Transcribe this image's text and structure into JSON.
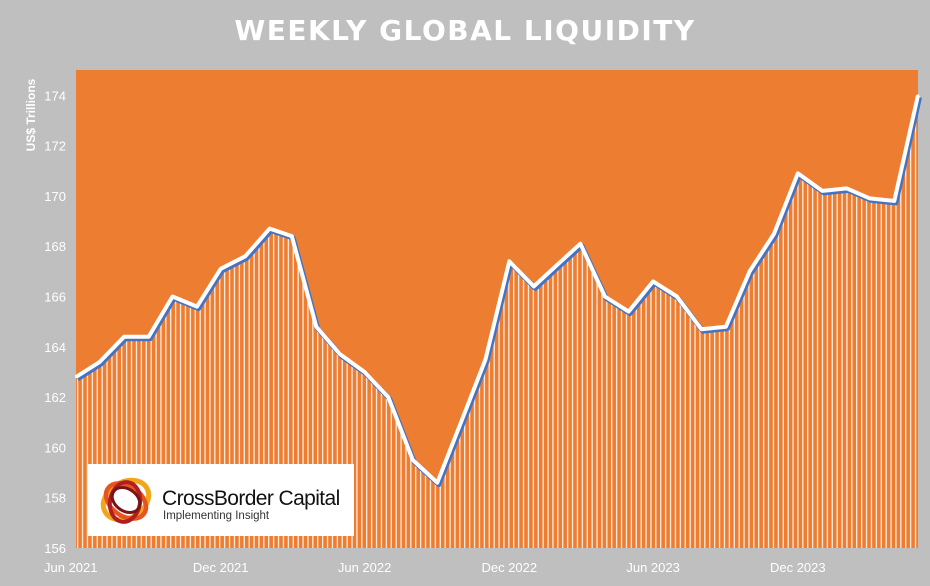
{
  "title": "WEEKLY GLOBAL LIQUIDITY",
  "logo": {
    "name": "CrossBorder Capital",
    "tagline": "Implementing Insight"
  },
  "colors": {
    "background": "#bfbfbf",
    "area": "#ed7d31",
    "line": "#ffffff",
    "line_shadow": "#4472c4"
  },
  "chart_data": {
    "type": "area",
    "title": "WEEKLY GLOBAL LIQUIDITY",
    "ylabel": "US$ Trillions",
    "xlabel": "",
    "ylim": [
      156,
      175
    ],
    "yticks": [
      156,
      158,
      160,
      162,
      164,
      166,
      168,
      170,
      172,
      174
    ],
    "xticks": [
      "Jun 2021",
      "Dec 2021",
      "Jun 2022",
      "Dec 2022",
      "Jun 2023",
      "Dec 2023"
    ],
    "grid": false,
    "series": [
      {
        "name": "",
        "x": [
          "2021-06",
          "2021-07",
          "2021-08",
          "2021-09",
          "2021-10",
          "2021-11",
          "2021-12",
          "2022-01",
          "2022-02",
          "2022-03",
          "2022-04",
          "2022-05",
          "2022-06",
          "2022-07",
          "2022-08",
          "2022-09",
          "2022-10",
          "2022-11",
          "2022-12",
          "2023-01",
          "2023-02",
          "2023-03",
          "2023-04",
          "2023-05",
          "2023-06",
          "2023-07",
          "2023-08",
          "2023-09",
          "2023-10",
          "2023-11",
          "2023-12",
          "2024-01",
          "2024-02",
          "2024-03",
          "2024-04",
          "2024-05"
        ],
        "values": [
          162.8,
          163.4,
          164.4,
          164.4,
          166.0,
          165.6,
          167.1,
          167.6,
          168.7,
          168.4,
          164.8,
          163.7,
          163.0,
          162.0,
          159.5,
          158.6,
          161.0,
          163.5,
          167.4,
          166.4,
          167.3,
          168.1,
          166.0,
          165.4,
          166.6,
          166.0,
          164.7,
          164.8,
          167.0,
          168.5,
          170.9,
          170.2,
          170.3,
          169.9,
          169.8,
          174.0
        ]
      }
    ]
  }
}
